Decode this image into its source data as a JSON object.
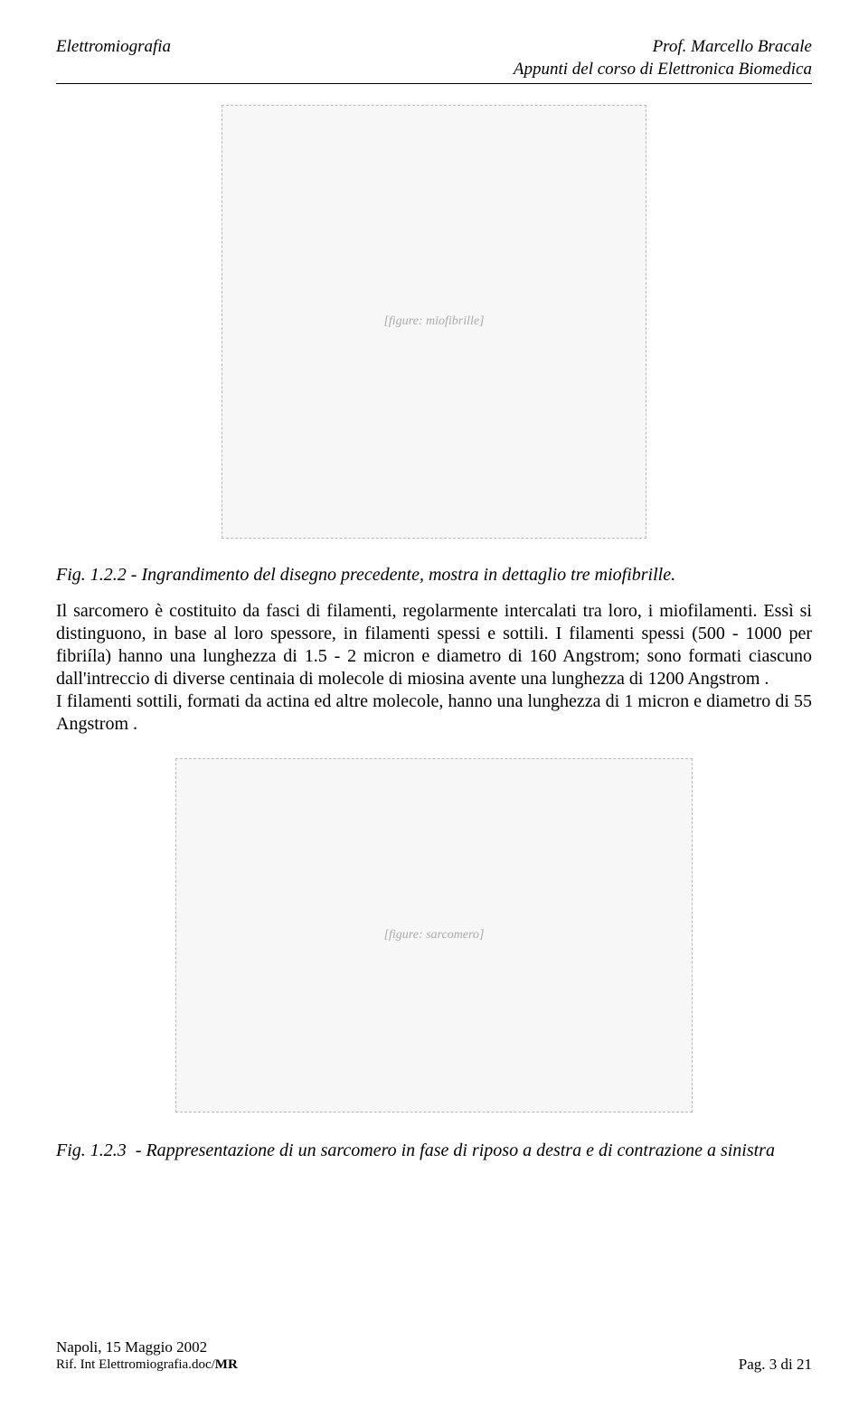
{
  "header": {
    "left": "Elettromiografia",
    "right_line1": "Prof. Marcello Bracale",
    "right_line2": "Appunti del corso di Elettronica Biomedica"
  },
  "figure1": {
    "placeholder": "[figure: miofibrille]",
    "caption_label": "Fig. 1.2.2",
    "caption_text": "  -  Ingrandimento del disegno precedente, mostra in dettaglio    tre miofibrille."
  },
  "paragraph": "Il sarcomero è costituito da fasci di filamenti, regolarmente intercalati tra loro, i miofilamenti. Essì si distinguono, in base al loro spessore, in filamenti spessi e sottili.  I filamenti spessi (500 - 1000 per fibriíla) hanno una lunghezza di 1.5 - 2 micron e diametro di 160 Angstrom; sono formati ciascuno dall'intreccio di diverse centinaia di molecole di miosina avente una lunghezza di 1200 Angstrom .\nI filamenti sottili, formati da actina ed altre molecole, hanno una lunghezza di 1 micron e diametro di 55 Angstrom .",
  "figure2": {
    "placeholder": "[figure: sarcomero]",
    "caption_label": "Fig.  1.2.3",
    "caption_text": "- Rappresentazione di un sarcomero in fase di riposo a destra e di contrazione a sinistra"
  },
  "footer": {
    "left_line1": "Napoli, 15 Maggio 2002",
    "left_line2": "Rif. Int Elettromiografia.doc/",
    "left_line2_bold": "MR",
    "right": "Pag.  3 di 21"
  }
}
